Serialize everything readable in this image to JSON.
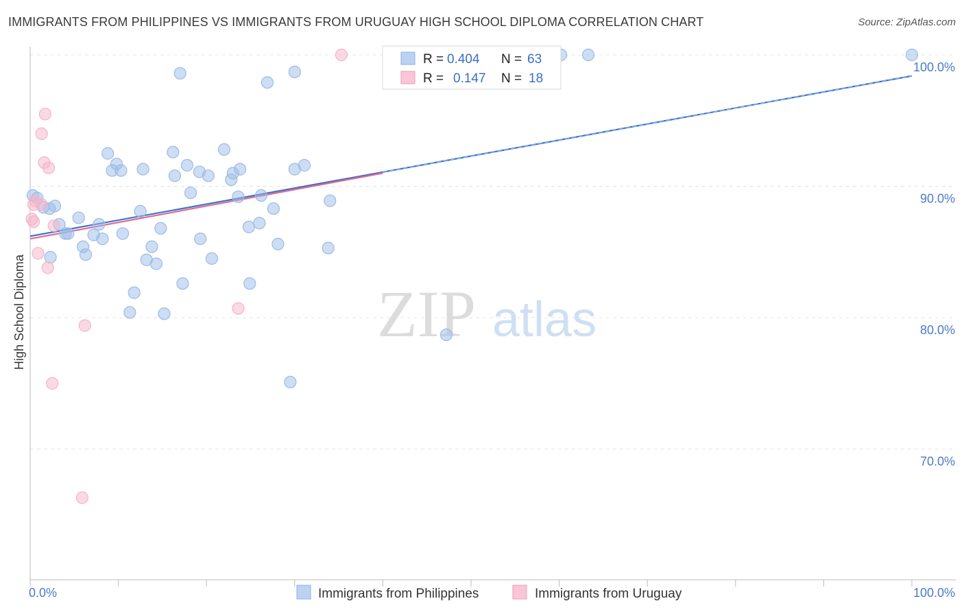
{
  "title": "IMMIGRANTS FROM PHILIPPINES VS IMMIGRANTS FROM URUGUAY HIGH SCHOOL DIPLOMA CORRELATION CHART",
  "source": "Source: ZipAtlas.com",
  "watermark": {
    "zip": "ZIP",
    "atlas": "atlas"
  },
  "chart_data": {
    "type": "scatter",
    "ylabel": "High School Diploma",
    "xlabel": "",
    "xlim": [
      0,
      100
    ],
    "ylim": [
      60,
      103.5
    ],
    "x_tick_labels": [
      {
        "value": 0,
        "label": "0.0%"
      },
      {
        "value": 100,
        "label": "100.0%"
      }
    ],
    "y_tick_labels": [
      {
        "value": 100,
        "label": "100.0%"
      },
      {
        "value": 90,
        "label": "90.0%"
      },
      {
        "value": 80,
        "label": "80.0%"
      },
      {
        "value": 70,
        "label": "70.0%"
      }
    ],
    "grid": true,
    "legend_position": "top-center",
    "series": [
      {
        "name": "Immigrants from Philippines",
        "color": "#9bbbe8",
        "line_color": "#3a72c8",
        "r_label": "R =",
        "r": "0.404",
        "n_label": "N =",
        "n": "63",
        "trend": {
          "x0": 0,
          "y0": 86.2,
          "x1": 100,
          "y1": 98.4
        },
        "points": [
          [
            0.3,
            89.3
          ],
          [
            0.8,
            89.1
          ],
          [
            1.5,
            88.4
          ],
          [
            2.8,
            88.5
          ],
          [
            2.2,
            88.3
          ],
          [
            5.5,
            87.6
          ],
          [
            3.3,
            87.1
          ],
          [
            7.8,
            87.1
          ],
          [
            4.0,
            86.4
          ],
          [
            7.2,
            86.3
          ],
          [
            4.3,
            86.4
          ],
          [
            8.2,
            86.0
          ],
          [
            10.5,
            86.4
          ],
          [
            6.0,
            85.4
          ],
          [
            6.3,
            84.8
          ],
          [
            2.3,
            84.6
          ],
          [
            12.5,
            88.1
          ],
          [
            14.8,
            86.8
          ],
          [
            13.8,
            85.4
          ],
          [
            13.2,
            84.4
          ],
          [
            14.3,
            84.1
          ],
          [
            11.8,
            81.9
          ],
          [
            11.3,
            80.4
          ],
          [
            15.2,
            80.3
          ],
          [
            17.3,
            82.6
          ],
          [
            8.8,
            92.5
          ],
          [
            9.8,
            91.7
          ],
          [
            9.3,
            91.2
          ],
          [
            10.3,
            91.2
          ],
          [
            12.8,
            91.3
          ],
          [
            16.2,
            92.6
          ],
          [
            16.4,
            90.8
          ],
          [
            17.8,
            91.6
          ],
          [
            19.2,
            91.1
          ],
          [
            20.2,
            90.8
          ],
          [
            18.2,
            89.5
          ],
          [
            19.3,
            86.0
          ],
          [
            20.6,
            84.5
          ],
          [
            22.0,
            92.8
          ],
          [
            22.8,
            90.5
          ],
          [
            23.0,
            91.0
          ],
          [
            23.8,
            91.3
          ],
          [
            23.6,
            89.2
          ],
          [
            24.8,
            86.9
          ],
          [
            26.0,
            87.2
          ],
          [
            26.2,
            89.3
          ],
          [
            27.6,
            88.3
          ],
          [
            28.1,
            85.6
          ],
          [
            24.9,
            82.6
          ],
          [
            17.0,
            98.6
          ],
          [
            26.9,
            97.9
          ],
          [
            30.0,
            98.7
          ],
          [
            30.0,
            91.3
          ],
          [
            31.1,
            91.6
          ],
          [
            34.0,
            88.9
          ],
          [
            33.8,
            85.3
          ],
          [
            29.5,
            75.1
          ],
          [
            47.2,
            78.7
          ],
          [
            60.2,
            100.0
          ],
          [
            63.3,
            100.0
          ],
          [
            100.0,
            100.0
          ]
        ]
      },
      {
        "name": "Immigrants from Uruguay",
        "color": "#f5b3c8",
        "line_color": "#e06a92",
        "r_label": "R =",
        "r": "0.147",
        "n_label": "N =",
        "n": "18",
        "trend": {
          "x0": 0,
          "y0": 86.0,
          "x1": 40,
          "y1": 91.0
        },
        "points": [
          [
            0.4,
            88.6
          ],
          [
            0.6,
            88.9
          ],
          [
            1.3,
            88.6
          ],
          [
            0.2,
            87.5
          ],
          [
            0.4,
            87.3
          ],
          [
            2.7,
            87.0
          ],
          [
            1.7,
            95.5
          ],
          [
            1.3,
            94.0
          ],
          [
            1.6,
            91.8
          ],
          [
            2.1,
            91.4
          ],
          [
            0.9,
            84.9
          ],
          [
            2.0,
            83.8
          ],
          [
            6.2,
            79.4
          ],
          [
            2.5,
            75.0
          ],
          [
            5.9,
            66.3
          ],
          [
            23.6,
            80.7
          ],
          [
            35.3,
            100.0
          ]
        ]
      }
    ]
  }
}
